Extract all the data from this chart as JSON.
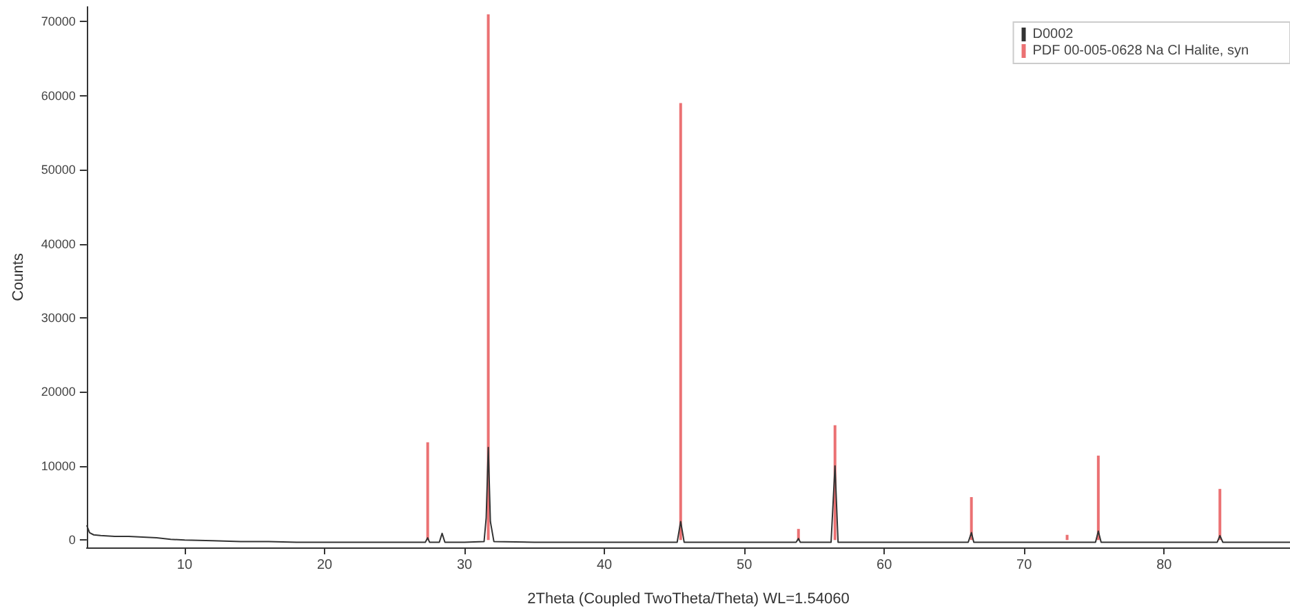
{
  "chart_data": {
    "type": "line",
    "xlabel": "2Theta (Coupled TwoTheta/Theta) WL=1.54060",
    "ylabel": "Counts",
    "xlim": [
      3,
      89
    ],
    "xticks": [
      10,
      20,
      30,
      40,
      50,
      60,
      70,
      80
    ],
    "ylim": [
      -1000,
      72000
    ],
    "yticks": [
      0,
      10000,
      20000,
      30000,
      40000,
      50000,
      60000,
      70000
    ],
    "grid": false,
    "legend": "top right",
    "marker": "none",
    "line_style": "solid",
    "series": [
      {
        "name": "D0002",
        "color": "#333333",
        "x": [
          3,
          3.2,
          3.5,
          4,
          5,
          6,
          7,
          8,
          9,
          10,
          12,
          14,
          16,
          18,
          20,
          22,
          24,
          26,
          27.2,
          27.37,
          27.5,
          28.2,
          28.4,
          28.6,
          30,
          31.4,
          31.55,
          31.7,
          31.85,
          32.1,
          35,
          40,
          45.2,
          45.45,
          45.7,
          50,
          53.7,
          53.87,
          54,
          56.2,
          56.48,
          56.7,
          60,
          66.0,
          66.23,
          66.4,
          70,
          75.1,
          75.3,
          75.5,
          80,
          83.8,
          83.99,
          84.2,
          89
        ],
        "values": [
          2000,
          1000,
          700,
          600,
          500,
          500,
          400,
          300,
          100,
          0,
          -100,
          -200,
          -200,
          -300,
          -300,
          -300,
          -300,
          -300,
          -300,
          300,
          -300,
          -300,
          900,
          -300,
          -300,
          -200,
          3000,
          12500,
          2500,
          -200,
          -300,
          -300,
          -300,
          2500,
          -300,
          -300,
          -300,
          200,
          -300,
          -300,
          10000,
          -300,
          -300,
          -300,
          1000,
          -300,
          -300,
          -300,
          1200,
          -300,
          -300,
          -300,
          600,
          -300,
          -300
        ]
      },
      {
        "name": "PDF 00-005-0628 Na Cl Halite, syn",
        "type": "bar",
        "color": "#e8585a",
        "x": [
          27.37,
          31.7,
          45.45,
          53.87,
          56.48,
          66.23,
          73.07,
          75.3,
          83.99
        ],
        "values": [
          13200,
          71000,
          59000,
          1500,
          15500,
          5800,
          700,
          11400,
          6900
        ]
      }
    ]
  }
}
